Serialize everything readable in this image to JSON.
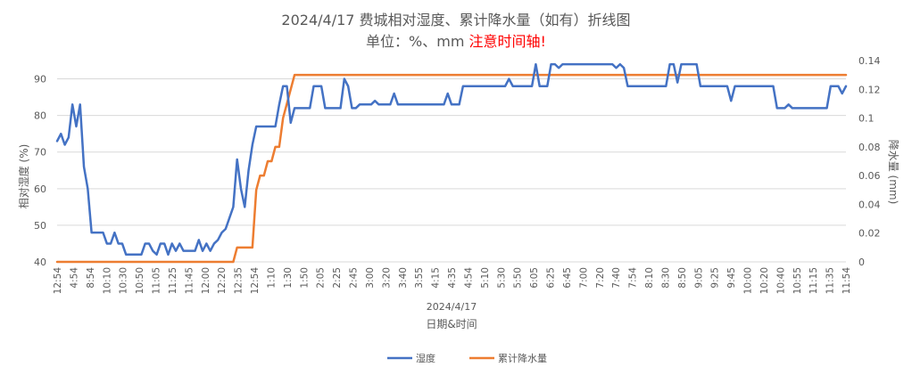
{
  "chart_data": {
    "type": "line",
    "title": "2024/4/17 费城相对湿度、累计降水量（如有）折线图",
    "subtitle_prefix": "单位：%、mm ",
    "subtitle_note": "注意时间轴!",
    "date_label": "2024/4/17",
    "xlabel": "日期&时间",
    "ylabel_left": "相对湿度 (%)",
    "ylabel_right": "降水量 (mm)",
    "ylim_left": [
      40,
      95
    ],
    "ylim_right": [
      0,
      0.14
    ],
    "yticks_left": [
      "40",
      "50",
      "60",
      "70",
      "80",
      "90"
    ],
    "yticks_right": [
      "0",
      "0.02",
      "0.04",
      "0.06",
      "0.08",
      "0.1",
      "0.12",
      "0.14"
    ],
    "x_tick_labels": [
      "12:54",
      "4:54",
      "8:54",
      "10:10",
      "10:30",
      "10:50",
      "11:05",
      "11:25",
      "11:45",
      "12:00",
      "12:20",
      "12:35",
      "12:54",
      "1:10",
      "1:30",
      "1:50",
      "2:05",
      "2:25",
      "2:45",
      "3:00",
      "3:20",
      "3:40",
      "3:55",
      "4:15",
      "4:35",
      "4:54",
      "5:10",
      "5:30",
      "5:50",
      "6:05",
      "6:25",
      "6:45",
      "7:00",
      "7:20",
      "7:40",
      "7:54",
      "8:10",
      "8:30",
      "8:50",
      "9:05",
      "9:25",
      "9:45",
      "10:00",
      "10:20",
      "10:40",
      "10:55",
      "11:15",
      "11:35",
      "11:54"
    ],
    "legend_position": "bottom",
    "grid": true,
    "series": [
      {
        "name": "湿度",
        "axis": "left",
        "color": "#4472C4",
        "values": [
          73,
          75,
          72,
          74,
          83,
          77,
          83,
          66,
          60,
          48,
          48,
          48,
          48,
          45,
          45,
          48,
          45,
          45,
          42,
          42,
          42,
          42,
          42,
          45,
          45,
          43,
          42,
          45,
          45,
          42,
          45,
          43,
          45,
          43,
          43,
          43,
          43,
          46,
          43,
          45,
          43,
          45,
          46,
          48,
          49,
          52,
          55,
          68,
          60,
          55,
          65,
          72,
          77,
          77,
          77,
          77,
          77,
          77,
          83,
          88,
          88,
          78,
          82,
          82,
          82,
          82,
          82,
          88,
          88,
          88,
          82,
          82,
          82,
          82,
          82,
          90,
          88,
          82,
          82,
          83,
          83,
          83,
          83,
          84,
          83,
          83,
          83,
          83,
          86,
          83,
          83,
          83,
          83,
          83,
          83,
          83,
          83,
          83,
          83,
          83,
          83,
          83,
          86,
          83,
          83,
          83,
          88,
          88,
          88,
          88,
          88,
          88,
          88,
          88,
          88,
          88,
          88,
          88,
          90,
          88,
          88,
          88,
          88,
          88,
          88,
          94,
          88,
          88,
          88,
          94,
          94,
          93,
          94,
          94,
          94,
          94,
          94,
          94,
          94,
          94,
          94,
          94,
          94,
          94,
          94,
          94,
          93,
          94,
          93,
          88,
          88,
          88,
          88,
          88,
          88,
          88,
          88,
          88,
          88,
          88,
          94,
          94,
          89,
          94,
          94,
          94,
          94,
          94,
          88,
          88,
          88,
          88,
          88,
          88,
          88,
          88,
          84,
          88,
          88,
          88,
          88,
          88,
          88,
          88,
          88,
          88,
          88,
          88,
          82,
          82,
          82,
          83,
          82,
          82,
          82,
          82,
          82,
          82,
          82,
          82,
          82,
          82,
          88,
          88,
          88,
          86,
          88
        ]
      },
      {
        "name": "累计降水量",
        "axis": "right",
        "color": "#ED7D31",
        "values": [
          0,
          0,
          0,
          0,
          0,
          0,
          0,
          0,
          0,
          0,
          0,
          0,
          0,
          0,
          0,
          0,
          0,
          0,
          0,
          0,
          0,
          0,
          0,
          0,
          0,
          0,
          0,
          0,
          0,
          0,
          0,
          0,
          0,
          0,
          0,
          0,
          0,
          0,
          0,
          0,
          0,
          0,
          0,
          0,
          0,
          0,
          0,
          0.01,
          0.01,
          0.01,
          0.01,
          0.01,
          0.05,
          0.06,
          0.06,
          0.07,
          0.07,
          0.08,
          0.08,
          0.1,
          0.11,
          0.12,
          0.13,
          0.13,
          0.13,
          0.13,
          0.13,
          0.13,
          0.13,
          0.13,
          0.13,
          0.13,
          0.13,
          0.13,
          0.13,
          0.13,
          0.13,
          0.13,
          0.13,
          0.13,
          0.13,
          0.13,
          0.13,
          0.13,
          0.13,
          0.13,
          0.13,
          0.13,
          0.13,
          0.13,
          0.13,
          0.13,
          0.13,
          0.13,
          0.13,
          0.13,
          0.13,
          0.13,
          0.13,
          0.13,
          0.13,
          0.13,
          0.13,
          0.13,
          0.13,
          0.13,
          0.13,
          0.13,
          0.13,
          0.13,
          0.13,
          0.13,
          0.13,
          0.13,
          0.13,
          0.13,
          0.13,
          0.13,
          0.13,
          0.13,
          0.13,
          0.13,
          0.13,
          0.13,
          0.13,
          0.13,
          0.13,
          0.13,
          0.13,
          0.13,
          0.13,
          0.13,
          0.13,
          0.13,
          0.13,
          0.13,
          0.13,
          0.13,
          0.13,
          0.13,
          0.13,
          0.13,
          0.13,
          0.13,
          0.13,
          0.13,
          0.13,
          0.13,
          0.13,
          0.13,
          0.13,
          0.13,
          0.13,
          0.13,
          0.13,
          0.13,
          0.13,
          0.13,
          0.13,
          0.13,
          0.13,
          0.13,
          0.13,
          0.13,
          0.13,
          0.13,
          0.13,
          0.13,
          0.13,
          0.13,
          0.13,
          0.13,
          0.13,
          0.13,
          0.13,
          0.13,
          0.13,
          0.13,
          0.13,
          0.13,
          0.13,
          0.13,
          0.13,
          0.13,
          0.13,
          0.13,
          0.13,
          0.13,
          0.13,
          0.13,
          0.13,
          0.13,
          0.13,
          0.13,
          0.13,
          0.13,
          0.13,
          0.13,
          0.13,
          0.13,
          0.13,
          0.13,
          0.13,
          0.13,
          0.13,
          0.13,
          0.13
        ]
      }
    ]
  }
}
